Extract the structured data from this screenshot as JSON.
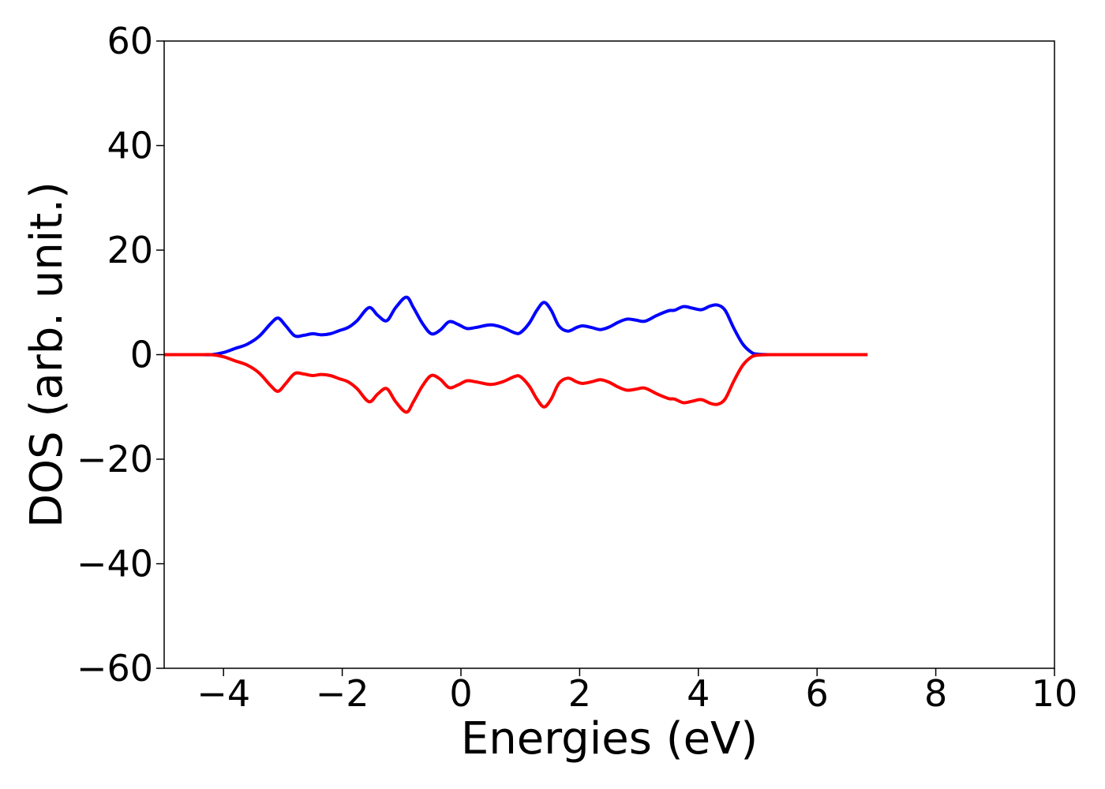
{
  "chart_data": {
    "type": "line",
    "title": "",
    "xlabel": "Energies (eV)",
    "ylabel": "DOS (arb. unit.)",
    "xlim": [
      -5,
      10
    ],
    "ylim": [
      -60,
      60
    ],
    "xticks": [
      -4,
      -2,
      0,
      2,
      4,
      6,
      8,
      10
    ],
    "yticks": [
      -60,
      -40,
      -20,
      0,
      20,
      40,
      60
    ],
    "xtick_labels": [
      "−4",
      "−2",
      "0",
      "2",
      "4",
      "6",
      "8",
      "10"
    ],
    "ytick_labels": [
      "−60",
      "−40",
      "−20",
      "0",
      "20",
      "40",
      "60"
    ],
    "grid": false,
    "legend": "none",
    "series": [
      {
        "color": "#0000ff",
        "x": [
          -5.0,
          -4.4,
          -4.2,
          -4.0,
          -3.8,
          -3.6,
          -3.4,
          -3.2,
          -3.08,
          -2.95,
          -2.8,
          -2.65,
          -2.5,
          -2.35,
          -2.2,
          -2.05,
          -1.9,
          -1.75,
          -1.55,
          -1.4,
          -1.25,
          -1.1,
          -0.92,
          -0.8,
          -0.65,
          -0.5,
          -0.35,
          -0.2,
          -0.05,
          0.1,
          0.25,
          0.5,
          0.7,
          0.9,
          1.0,
          1.15,
          1.28,
          1.4,
          1.52,
          1.65,
          1.8,
          1.95,
          2.05,
          2.2,
          2.35,
          2.5,
          2.65,
          2.8,
          2.95,
          3.1,
          3.3,
          3.5,
          3.6,
          3.75,
          3.9,
          4.05,
          4.2,
          4.32,
          4.45,
          4.6,
          4.75,
          4.9,
          5.0,
          5.2,
          5.5,
          6.0,
          6.5,
          6.85
        ],
        "y": [
          0.0,
          0.0,
          0.0,
          0.4,
          1.2,
          2.0,
          3.5,
          6.0,
          7.0,
          5.5,
          3.6,
          3.7,
          4.0,
          3.8,
          4.0,
          4.6,
          5.2,
          6.5,
          9.0,
          7.5,
          6.5,
          9.0,
          11.0,
          9.0,
          6.0,
          4.0,
          4.7,
          6.3,
          5.8,
          5.0,
          5.2,
          5.7,
          5.2,
          4.2,
          4.2,
          6.0,
          8.5,
          10.0,
          8.5,
          5.5,
          4.5,
          5.2,
          5.5,
          5.2,
          4.8,
          5.3,
          6.2,
          6.8,
          6.6,
          6.4,
          7.5,
          8.4,
          8.5,
          9.2,
          8.9,
          8.6,
          9.3,
          9.5,
          8.5,
          5.0,
          2.0,
          0.4,
          0.1,
          0.0,
          0.0,
          0.0,
          0.0,
          0.0
        ]
      },
      {
        "color": "#ff0000",
        "x": [
          -5.0,
          -4.4,
          -4.2,
          -4.0,
          -3.8,
          -3.6,
          -3.4,
          -3.2,
          -3.08,
          -2.95,
          -2.8,
          -2.65,
          -2.5,
          -2.35,
          -2.2,
          -2.05,
          -1.9,
          -1.75,
          -1.55,
          -1.4,
          -1.25,
          -1.1,
          -0.92,
          -0.8,
          -0.65,
          -0.5,
          -0.35,
          -0.2,
          -0.05,
          0.1,
          0.25,
          0.5,
          0.7,
          0.9,
          1.0,
          1.15,
          1.28,
          1.4,
          1.52,
          1.65,
          1.8,
          1.95,
          2.05,
          2.2,
          2.35,
          2.5,
          2.65,
          2.8,
          2.95,
          3.1,
          3.3,
          3.5,
          3.6,
          3.75,
          3.9,
          4.05,
          4.2,
          4.32,
          4.45,
          4.6,
          4.75,
          4.9,
          5.0,
          5.2,
          5.5,
          6.0,
          6.5,
          6.85
        ],
        "y": [
          0.0,
          0.0,
          0.0,
          -0.4,
          -1.2,
          -2.0,
          -3.5,
          -6.0,
          -7.0,
          -5.5,
          -3.6,
          -3.7,
          -4.0,
          -3.8,
          -4.0,
          -4.6,
          -5.2,
          -6.5,
          -9.0,
          -7.5,
          -6.5,
          -9.0,
          -11.0,
          -9.0,
          -6.0,
          -4.0,
          -4.7,
          -6.3,
          -5.8,
          -5.0,
          -5.2,
          -5.7,
          -5.2,
          -4.2,
          -4.2,
          -6.0,
          -8.5,
          -10.0,
          -8.5,
          -5.5,
          -4.5,
          -5.2,
          -5.5,
          -5.2,
          -4.8,
          -5.3,
          -6.2,
          -6.8,
          -6.6,
          -6.4,
          -7.5,
          -8.4,
          -8.5,
          -9.2,
          -8.9,
          -8.6,
          -9.3,
          -9.5,
          -8.5,
          -5.0,
          -2.0,
          -0.4,
          -0.1,
          0.0,
          0.0,
          0.0,
          0.0,
          0.0
        ]
      }
    ]
  }
}
